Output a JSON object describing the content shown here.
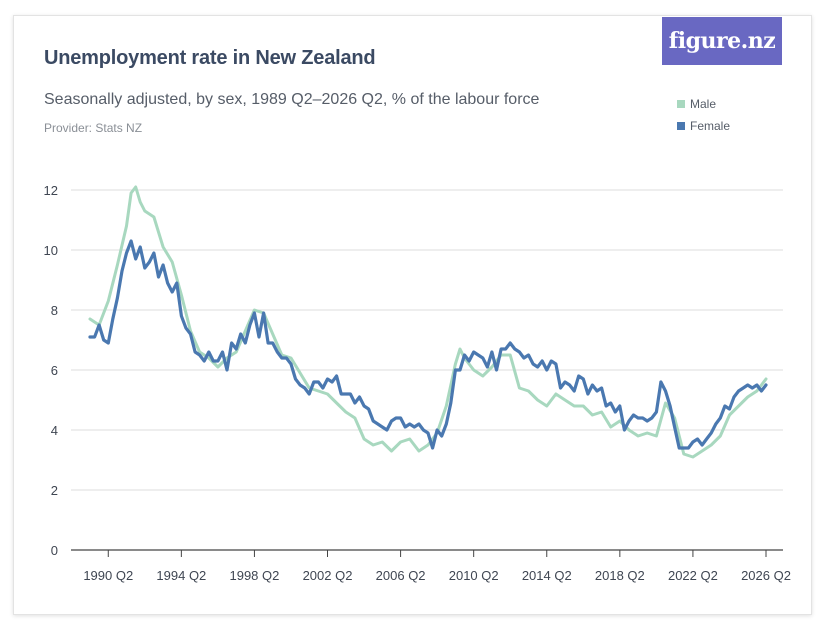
{
  "logo_text": "figure.nz",
  "title": "Unemployment rate in New Zealand",
  "subtitle": "Seasonally adjusted, by sex, 1989 Q2–2026 Q2, % of the labour force",
  "provider": "Provider: Stats NZ",
  "colors": {
    "male": "#a8d8bf",
    "female": "#4a78b0",
    "grid": "#dcdcdc",
    "axis": "#444444"
  },
  "chart_data": {
    "type": "line",
    "title": "Unemployment rate in New Zealand",
    "subtitle": "Seasonally adjusted, by sex, 1989 Q2–2026 Q2, % of the labour force",
    "ylim": [
      0,
      12
    ],
    "y_ticks": [
      "0",
      "2",
      "4",
      "6",
      "8",
      "10",
      "12"
    ],
    "x_ticks": [
      "1990 Q2",
      "1994 Q2",
      "1998 Q2",
      "2002 Q2",
      "2006 Q2",
      "2010 Q2",
      "2014 Q2",
      "2018 Q2",
      "2022 Q2",
      "2026 Q2"
    ],
    "x_start": "1989 Q2",
    "x_end": "2026 Q2",
    "grid": true,
    "legend_position": "top-right",
    "series": [
      {
        "name": "Male",
        "color": "#a8d8bf",
        "points": [
          [
            "1989 Q2",
            7.7
          ],
          [
            "1989 Q4",
            7.5
          ],
          [
            "1990 Q2",
            8.3
          ],
          [
            "1990 Q4",
            9.5
          ],
          [
            "1991 Q2",
            10.8
          ],
          [
            "1991 Q3",
            11.9
          ],
          [
            "1991 Q4",
            12.1
          ],
          [
            "1992 Q1",
            11.6
          ],
          [
            "1992 Q2",
            11.3
          ],
          [
            "1992 Q4",
            11.1
          ],
          [
            "1993 Q2",
            10.1
          ],
          [
            "1993 Q4",
            9.6
          ],
          [
            "1994 Q2",
            8.5
          ],
          [
            "1994 Q4",
            7.3
          ],
          [
            "1995 Q2",
            6.6
          ],
          [
            "1995 Q4",
            6.4
          ],
          [
            "1996 Q2",
            6.1
          ],
          [
            "1996 Q4",
            6.4
          ],
          [
            "1997 Q2",
            6.6
          ],
          [
            "1997 Q4",
            7.3
          ],
          [
            "1998 Q2",
            8.0
          ],
          [
            "1998 Q4",
            7.9
          ],
          [
            "1999 Q2",
            7.2
          ],
          [
            "1999 Q4",
            6.5
          ],
          [
            "2000 Q2",
            6.4
          ],
          [
            "2000 Q4",
            5.9
          ],
          [
            "2001 Q2",
            5.4
          ],
          [
            "2001 Q4",
            5.3
          ],
          [
            "2002 Q2",
            5.2
          ],
          [
            "2002 Q4",
            4.9
          ],
          [
            "2003 Q2",
            4.6
          ],
          [
            "2003 Q4",
            4.4
          ],
          [
            "2004 Q2",
            3.7
          ],
          [
            "2004 Q4",
            3.5
          ],
          [
            "2005 Q2",
            3.6
          ],
          [
            "2005 Q4",
            3.3
          ],
          [
            "2006 Q2",
            3.6
          ],
          [
            "2006 Q4",
            3.7
          ],
          [
            "2007 Q2",
            3.3
          ],
          [
            "2007 Q4",
            3.5
          ],
          [
            "2008 Q2",
            3.9
          ],
          [
            "2008 Q4",
            4.8
          ],
          [
            "2009 Q2",
            6.2
          ],
          [
            "2009 Q3",
            6.7
          ],
          [
            "2009 Q4",
            6.4
          ],
          [
            "2010 Q2",
            6.0
          ],
          [
            "2010 Q4",
            5.8
          ],
          [
            "2011 Q2",
            6.1
          ],
          [
            "2011 Q4",
            6.5
          ],
          [
            "2012 Q2",
            6.5
          ],
          [
            "2012 Q4",
            5.4
          ],
          [
            "2013 Q2",
            5.3
          ],
          [
            "2013 Q4",
            5.0
          ],
          [
            "2014 Q2",
            4.8
          ],
          [
            "2014 Q4",
            5.2
          ],
          [
            "2015 Q2",
            5.0
          ],
          [
            "2015 Q4",
            4.8
          ],
          [
            "2016 Q2",
            4.8
          ],
          [
            "2016 Q4",
            4.5
          ],
          [
            "2017 Q2",
            4.6
          ],
          [
            "2017 Q4",
            4.1
          ],
          [
            "2018 Q2",
            4.3
          ],
          [
            "2018 Q4",
            4.0
          ],
          [
            "2019 Q2",
            3.8
          ],
          [
            "2019 Q4",
            3.9
          ],
          [
            "2020 Q2",
            3.8
          ],
          [
            "2020 Q4",
            4.9
          ],
          [
            "2021 Q2",
            4.4
          ],
          [
            "2021 Q4",
            3.2
          ],
          [
            "2022 Q2",
            3.1
          ],
          [
            "2022 Q4",
            3.3
          ],
          [
            "2023 Q2",
            3.5
          ],
          [
            "2023 Q4",
            3.8
          ],
          [
            "2024 Q2",
            4.5
          ],
          [
            "2024 Q4",
            4.8
          ],
          [
            "2025 Q2",
            5.1
          ],
          [
            "2025 Q4",
            5.3
          ],
          [
            "2026 Q2",
            5.7
          ]
        ]
      },
      {
        "name": "Female",
        "color": "#4a78b0",
        "points": [
          [
            "1989 Q2",
            7.1
          ],
          [
            "1989 Q3",
            7.1
          ],
          [
            "1989 Q4",
            7.5
          ],
          [
            "1990 Q1",
            7.0
          ],
          [
            "1990 Q2",
            6.9
          ],
          [
            "1990 Q3",
            7.7
          ],
          [
            "1990 Q4",
            8.4
          ],
          [
            "1991 Q1",
            9.3
          ],
          [
            "1991 Q2",
            9.9
          ],
          [
            "1991 Q3",
            10.3
          ],
          [
            "1991 Q4",
            9.7
          ],
          [
            "1992 Q1",
            10.1
          ],
          [
            "1992 Q2",
            9.4
          ],
          [
            "1992 Q3",
            9.6
          ],
          [
            "1992 Q4",
            9.9
          ],
          [
            "1993 Q1",
            9.1
          ],
          [
            "1993 Q2",
            9.5
          ],
          [
            "1993 Q3",
            8.9
          ],
          [
            "1993 Q4",
            8.6
          ],
          [
            "1994 Q1",
            8.9
          ],
          [
            "1994 Q2",
            7.8
          ],
          [
            "1994 Q3",
            7.4
          ],
          [
            "1994 Q4",
            7.2
          ],
          [
            "1995 Q1",
            6.6
          ],
          [
            "1995 Q2",
            6.5
          ],
          [
            "1995 Q3",
            6.3
          ],
          [
            "1995 Q4",
            6.6
          ],
          [
            "1996 Q1",
            6.3
          ],
          [
            "1996 Q2",
            6.3
          ],
          [
            "1996 Q3",
            6.6
          ],
          [
            "1996 Q4",
            6.0
          ],
          [
            "1997 Q1",
            6.9
          ],
          [
            "1997 Q2",
            6.7
          ],
          [
            "1997 Q3",
            7.2
          ],
          [
            "1997 Q4",
            6.9
          ],
          [
            "1998 Q1",
            7.5
          ],
          [
            "1998 Q2",
            7.9
          ],
          [
            "1998 Q3",
            7.1
          ],
          [
            "1998 Q4",
            7.9
          ],
          [
            "1999 Q1",
            6.9
          ],
          [
            "1999 Q2",
            6.9
          ],
          [
            "1999 Q3",
            6.6
          ],
          [
            "1999 Q4",
            6.4
          ],
          [
            "2000 Q1",
            6.4
          ],
          [
            "2000 Q2",
            6.2
          ],
          [
            "2000 Q3",
            5.7
          ],
          [
            "2000 Q4",
            5.5
          ],
          [
            "2001 Q1",
            5.4
          ],
          [
            "2001 Q2",
            5.2
          ],
          [
            "2001 Q3",
            5.6
          ],
          [
            "2001 Q4",
            5.6
          ],
          [
            "2002 Q1",
            5.4
          ],
          [
            "2002 Q2",
            5.7
          ],
          [
            "2002 Q3",
            5.6
          ],
          [
            "2002 Q4",
            5.8
          ],
          [
            "2003 Q1",
            5.2
          ],
          [
            "2003 Q2",
            5.2
          ],
          [
            "2003 Q3",
            5.2
          ],
          [
            "2003 Q4",
            4.9
          ],
          [
            "2004 Q1",
            5.1
          ],
          [
            "2004 Q2",
            4.8
          ],
          [
            "2004 Q3",
            4.7
          ],
          [
            "2004 Q4",
            4.3
          ],
          [
            "2005 Q1",
            4.2
          ],
          [
            "2005 Q2",
            4.1
          ],
          [
            "2005 Q3",
            4.0
          ],
          [
            "2005 Q4",
            4.3
          ],
          [
            "2006 Q1",
            4.4
          ],
          [
            "2006 Q2",
            4.4
          ],
          [
            "2006 Q3",
            4.1
          ],
          [
            "2006 Q4",
            4.2
          ],
          [
            "2007 Q1",
            4.1
          ],
          [
            "2007 Q2",
            4.2
          ],
          [
            "2007 Q3",
            4.0
          ],
          [
            "2007 Q4",
            3.9
          ],
          [
            "2008 Q1",
            3.4
          ],
          [
            "2008 Q2",
            4.0
          ],
          [
            "2008 Q3",
            3.8
          ],
          [
            "2008 Q4",
            4.2
          ],
          [
            "2009 Q1",
            4.9
          ],
          [
            "2009 Q2",
            6.0
          ],
          [
            "2009 Q3",
            6.0
          ],
          [
            "2009 Q4",
            6.5
          ],
          [
            "2010 Q1",
            6.3
          ],
          [
            "2010 Q2",
            6.6
          ],
          [
            "2010 Q3",
            6.5
          ],
          [
            "2010 Q4",
            6.4
          ],
          [
            "2011 Q1",
            6.1
          ],
          [
            "2011 Q2",
            6.6
          ],
          [
            "2011 Q3",
            6.0
          ],
          [
            "2011 Q4",
            6.7
          ],
          [
            "2012 Q1",
            6.7
          ],
          [
            "2012 Q2",
            6.9
          ],
          [
            "2012 Q3",
            6.7
          ],
          [
            "2012 Q4",
            6.6
          ],
          [
            "2013 Q1",
            6.4
          ],
          [
            "2013 Q2",
            6.5
          ],
          [
            "2013 Q3",
            6.2
          ],
          [
            "2013 Q4",
            6.1
          ],
          [
            "2014 Q1",
            6.3
          ],
          [
            "2014 Q2",
            6.0
          ],
          [
            "2014 Q3",
            6.3
          ],
          [
            "2014 Q4",
            6.2
          ],
          [
            "2015 Q1",
            5.4
          ],
          [
            "2015 Q2",
            5.6
          ],
          [
            "2015 Q3",
            5.5
          ],
          [
            "2015 Q4",
            5.3
          ],
          [
            "2016 Q1",
            5.8
          ],
          [
            "2016 Q2",
            5.7
          ],
          [
            "2016 Q3",
            5.2
          ],
          [
            "2016 Q4",
            5.5
          ],
          [
            "2017 Q1",
            5.3
          ],
          [
            "2017 Q2",
            5.4
          ],
          [
            "2017 Q3",
            4.8
          ],
          [
            "2017 Q4",
            4.9
          ],
          [
            "2018 Q1",
            4.6
          ],
          [
            "2018 Q2",
            4.8
          ],
          [
            "2018 Q3",
            4.0
          ],
          [
            "2018 Q4",
            4.3
          ],
          [
            "2019 Q1",
            4.5
          ],
          [
            "2019 Q2",
            4.4
          ],
          [
            "2019 Q3",
            4.4
          ],
          [
            "2019 Q4",
            4.3
          ],
          [
            "2020 Q1",
            4.4
          ],
          [
            "2020 Q2",
            4.6
          ],
          [
            "2020 Q3",
            5.6
          ],
          [
            "2020 Q4",
            5.3
          ],
          [
            "2021 Q1",
            4.8
          ],
          [
            "2021 Q2",
            4.1
          ],
          [
            "2021 Q3",
            3.4
          ],
          [
            "2021 Q4",
            3.4
          ],
          [
            "2022 Q1",
            3.4
          ],
          [
            "2022 Q2",
            3.6
          ],
          [
            "2022 Q3",
            3.7
          ],
          [
            "2022 Q4",
            3.5
          ],
          [
            "2023 Q1",
            3.7
          ],
          [
            "2023 Q2",
            3.9
          ],
          [
            "2023 Q3",
            4.2
          ],
          [
            "2023 Q4",
            4.4
          ],
          [
            "2024 Q1",
            4.8
          ],
          [
            "2024 Q2",
            4.7
          ],
          [
            "2024 Q3",
            5.1
          ],
          [
            "2024 Q4",
            5.3
          ],
          [
            "2025 Q1",
            5.4
          ],
          [
            "2025 Q2",
            5.5
          ],
          [
            "2025 Q3",
            5.4
          ],
          [
            "2025 Q4",
            5.5
          ],
          [
            "2026 Q1",
            5.3
          ],
          [
            "2026 Q2",
            5.5
          ]
        ]
      }
    ]
  }
}
